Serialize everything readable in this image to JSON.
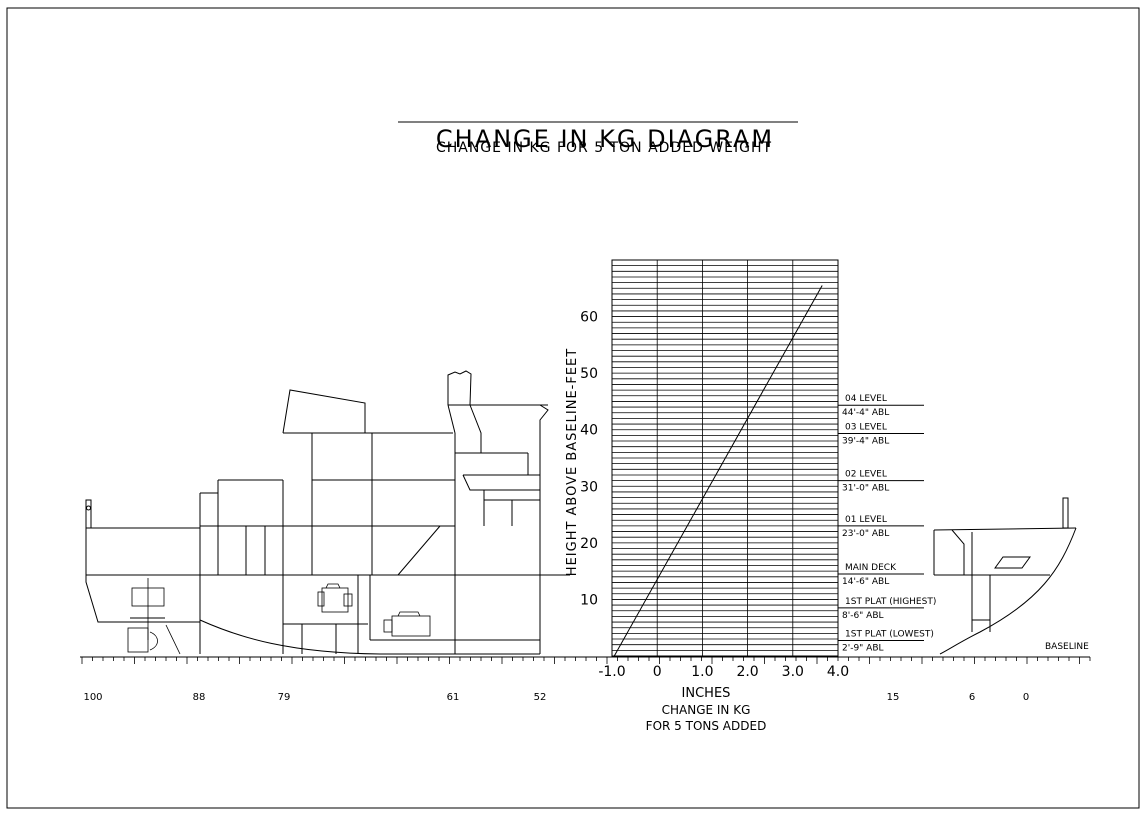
{
  "title": "CHANGE IN KG DIAGRAM",
  "subtitle": "CHANGE IN KG FOR 5 TON ADDED WEIGHT",
  "chart": {
    "ylabel": "HEIGHT ABOVE BASELINE-FEET",
    "xlabel_lines": [
      "INCHES",
      "CHANGE IN KG",
      "FOR 5 TONS ADDED"
    ],
    "x_ticks": [
      "-1.0",
      "0",
      "1.0",
      "2.0",
      "3.0",
      "4.0"
    ],
    "y_ticks": [
      "10",
      "20",
      "30",
      "40",
      "50",
      "60"
    ]
  },
  "chart_data": {
    "type": "line",
    "title": "CHANGE IN KG DIAGRAM",
    "subtitle": "CHANGE IN KG FOR 5 TON ADDED WEIGHT",
    "xlabel": "INCHES CHANGE IN KG FOR 5 TONS ADDED",
    "ylabel": "HEIGHT ABOVE BASELINE-FEET",
    "xlim": [
      -1.0,
      4.0
    ],
    "ylim": [
      0,
      70
    ],
    "grid": true,
    "series": [
      {
        "x": [
          -0.95,
          3.65
        ],
        "y": [
          0,
          65.5
        ]
      }
    ]
  },
  "levels": [
    {
      "name": "04 LEVEL",
      "height": "44'-4\" ABL",
      "height_ft": 44.33
    },
    {
      "name": "03 LEVEL",
      "height": "39'-4\" ABL",
      "height_ft": 39.33
    },
    {
      "name": "02 LEVEL",
      "height": "31'-0\" ABL",
      "height_ft": 31.0
    },
    {
      "name": "01 LEVEL",
      "height": "23'-0\" ABL",
      "height_ft": 23.0
    },
    {
      "name": "MAIN DECK",
      "height": "14'-6\" ABL",
      "height_ft": 14.5
    },
    {
      "name": "1ST PLAT (HIGHEST)",
      "height": "8'-6\" ABL",
      "height_ft": 8.5
    },
    {
      "name": "1ST PLAT (LOWEST)",
      "height": "2'-9\" ABL",
      "height_ft": 2.75
    }
  ],
  "baseline_label": "BASELINE",
  "frame_labels": [
    "100",
    "88",
    "79",
    "61",
    "52",
    "15",
    "6",
    "0"
  ]
}
